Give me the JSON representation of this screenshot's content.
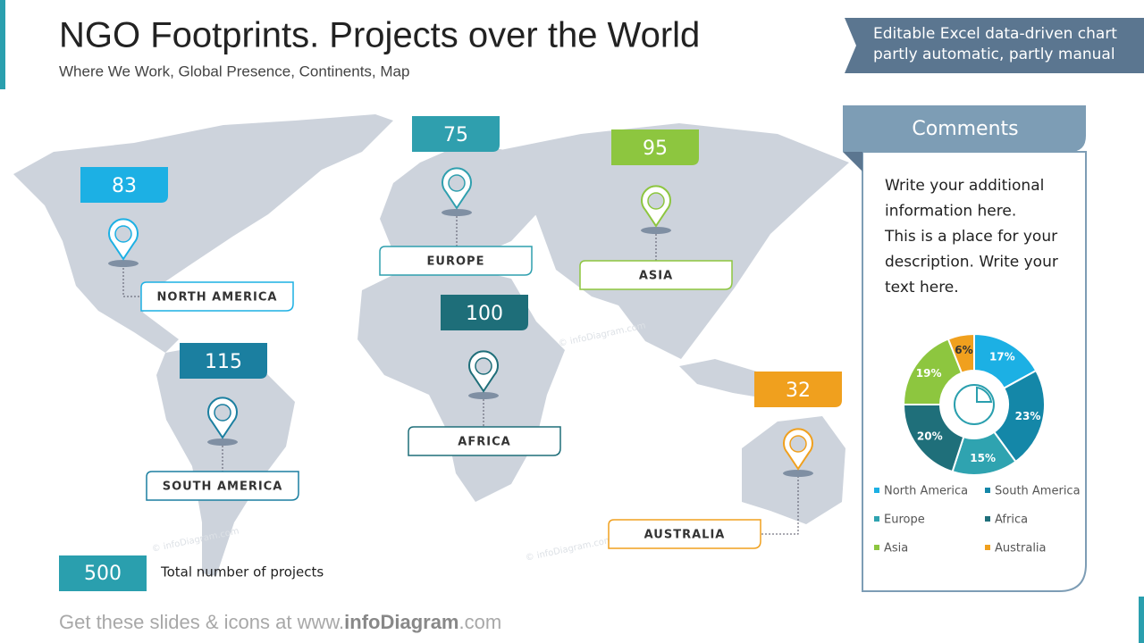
{
  "header": {
    "title": "NGO Footprints. Projects over the World",
    "subtitle": "Where We Work, Global Presence, Continents, Map",
    "badge": [
      "Editable Excel data-driven chart",
      "partly automatic, partly manual"
    ]
  },
  "regions": [
    {
      "name": "NORTH AMERICA",
      "projects": 83,
      "color": "#1cb0e4"
    },
    {
      "name": "EUROPE",
      "projects": 75,
      "color": "#2f9fae"
    },
    {
      "name": "ASIA",
      "projects": 95,
      "color": "#8dc63f"
    },
    {
      "name": "AFRICA",
      "projects": 100,
      "color": "#1e6e79"
    },
    {
      "name": "SOUTH AMERICA",
      "projects": 115,
      "color": "#1b7fa0"
    },
    {
      "name": "AUSTRALIA",
      "projects": 32,
      "color": "#f0a01e"
    }
  ],
  "total": {
    "value": 500,
    "label": "Total number of projects"
  },
  "comments": {
    "title": "Comments",
    "lines": [
      "Write your additional",
      "information here.",
      "This is a place for your",
      "description. Write your",
      "text here."
    ]
  },
  "chart_data": {
    "type": "donut",
    "categories": [
      "North America",
      "South America",
      "Europe",
      "Africa",
      "Asia",
      "Australia"
    ],
    "values": [
      17,
      23,
      15,
      20,
      19,
      6
    ],
    "value_labels": [
      "17%",
      "23%",
      "15%",
      "20%",
      "19%",
      "6%"
    ],
    "colors": [
      "#1cb0e4",
      "#1487a8",
      "#2fa3b0",
      "#1f6f7a",
      "#8dc63f",
      "#f0a01e"
    ]
  },
  "watermark": "© infoDiagram.com",
  "footer": {
    "prefix": "Get these slides & icons at www.",
    "brand": "infoDiagram",
    "suffix": ".com"
  }
}
